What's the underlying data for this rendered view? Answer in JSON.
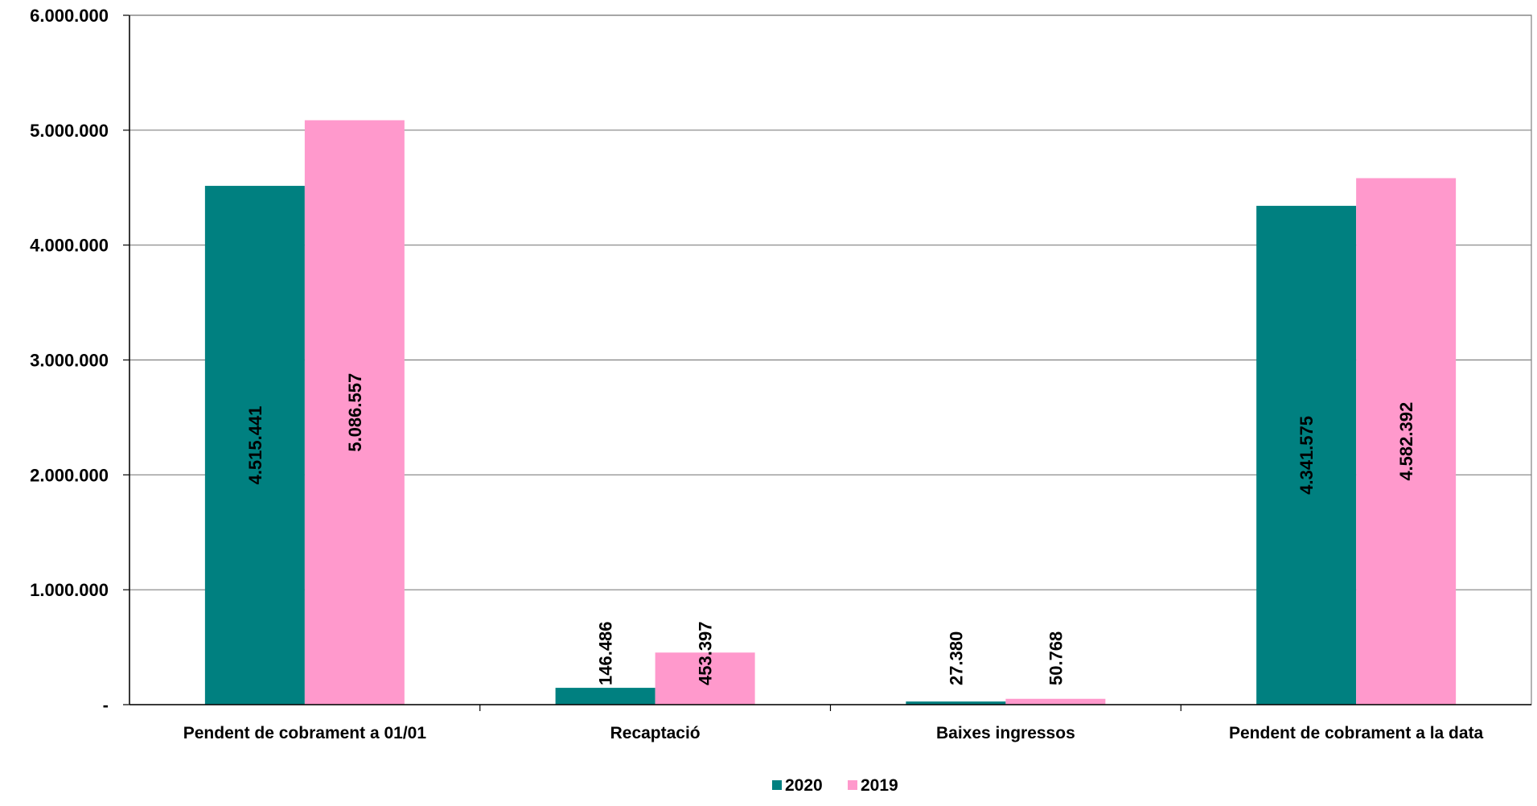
{
  "chart_data": {
    "type": "bar",
    "title": "",
    "xlabel": "",
    "ylabel": "",
    "categories": [
      "Pendent de cobrament a 01/01",
      "Recaptació",
      "Baixes ingressos",
      "Pendent de cobrament a la data"
    ],
    "series": [
      {
        "name": "2020",
        "color": "#008080",
        "values": [
          4515441,
          146486,
          27380,
          4341575
        ],
        "labels": [
          "4.515.441",
          "146.486",
          "27.380",
          "4.341.575"
        ]
      },
      {
        "name": "2019",
        "color": "#FF99CC",
        "values": [
          5086557,
          453397,
          50768,
          4582392
        ],
        "labels": [
          "5.086.557",
          "453.397",
          "50.768",
          "4.582.392"
        ]
      }
    ],
    "ylim": [
      0,
      6000000
    ],
    "yticks": [
      0,
      1000000,
      2000000,
      3000000,
      4000000,
      5000000,
      6000000
    ],
    "ytick_labels": [
      "-",
      "1.000.000",
      "2.000.000",
      "3.000.000",
      "4.000.000",
      "5.000.000",
      "6.000.000"
    ],
    "grid": true,
    "legend_position": "bottom"
  }
}
